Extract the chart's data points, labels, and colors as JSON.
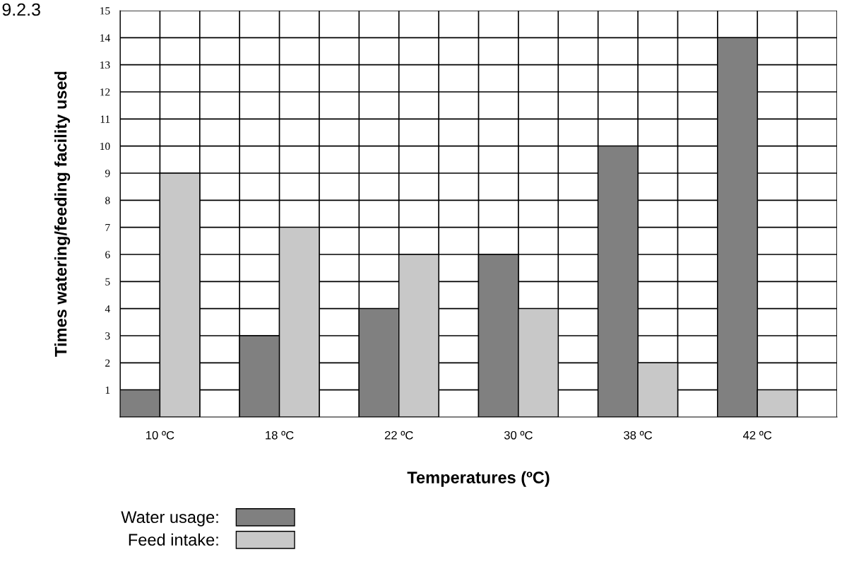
{
  "chart_data": {
    "type": "bar",
    "xlabel": "Temperatures (ºC)",
    "ylabel": "Times watering/feeding facility used",
    "categories": [
      "10 ºC",
      "18 ºC",
      "22 ºC",
      "30 ºC",
      "38 ºC",
      "42 ºC"
    ],
    "series": [
      {
        "name": "Water usage:",
        "color": "#808080",
        "values": [
          1,
          3,
          4,
          6,
          10,
          14
        ]
      },
      {
        "name": "Feed intake:",
        "color": "#c8c8c8",
        "values": [
          9,
          7,
          6,
          4,
          2,
          1
        ]
      }
    ],
    "ylim": [
      0,
      15
    ],
    "yticks": [
      1,
      2,
      3,
      4,
      5,
      6,
      7,
      8,
      9,
      10,
      11,
      12,
      13,
      14,
      15
    ],
    "grid": true,
    "legend": "bottom left",
    "annotations": [
      "9.2.3"
    ]
  }
}
